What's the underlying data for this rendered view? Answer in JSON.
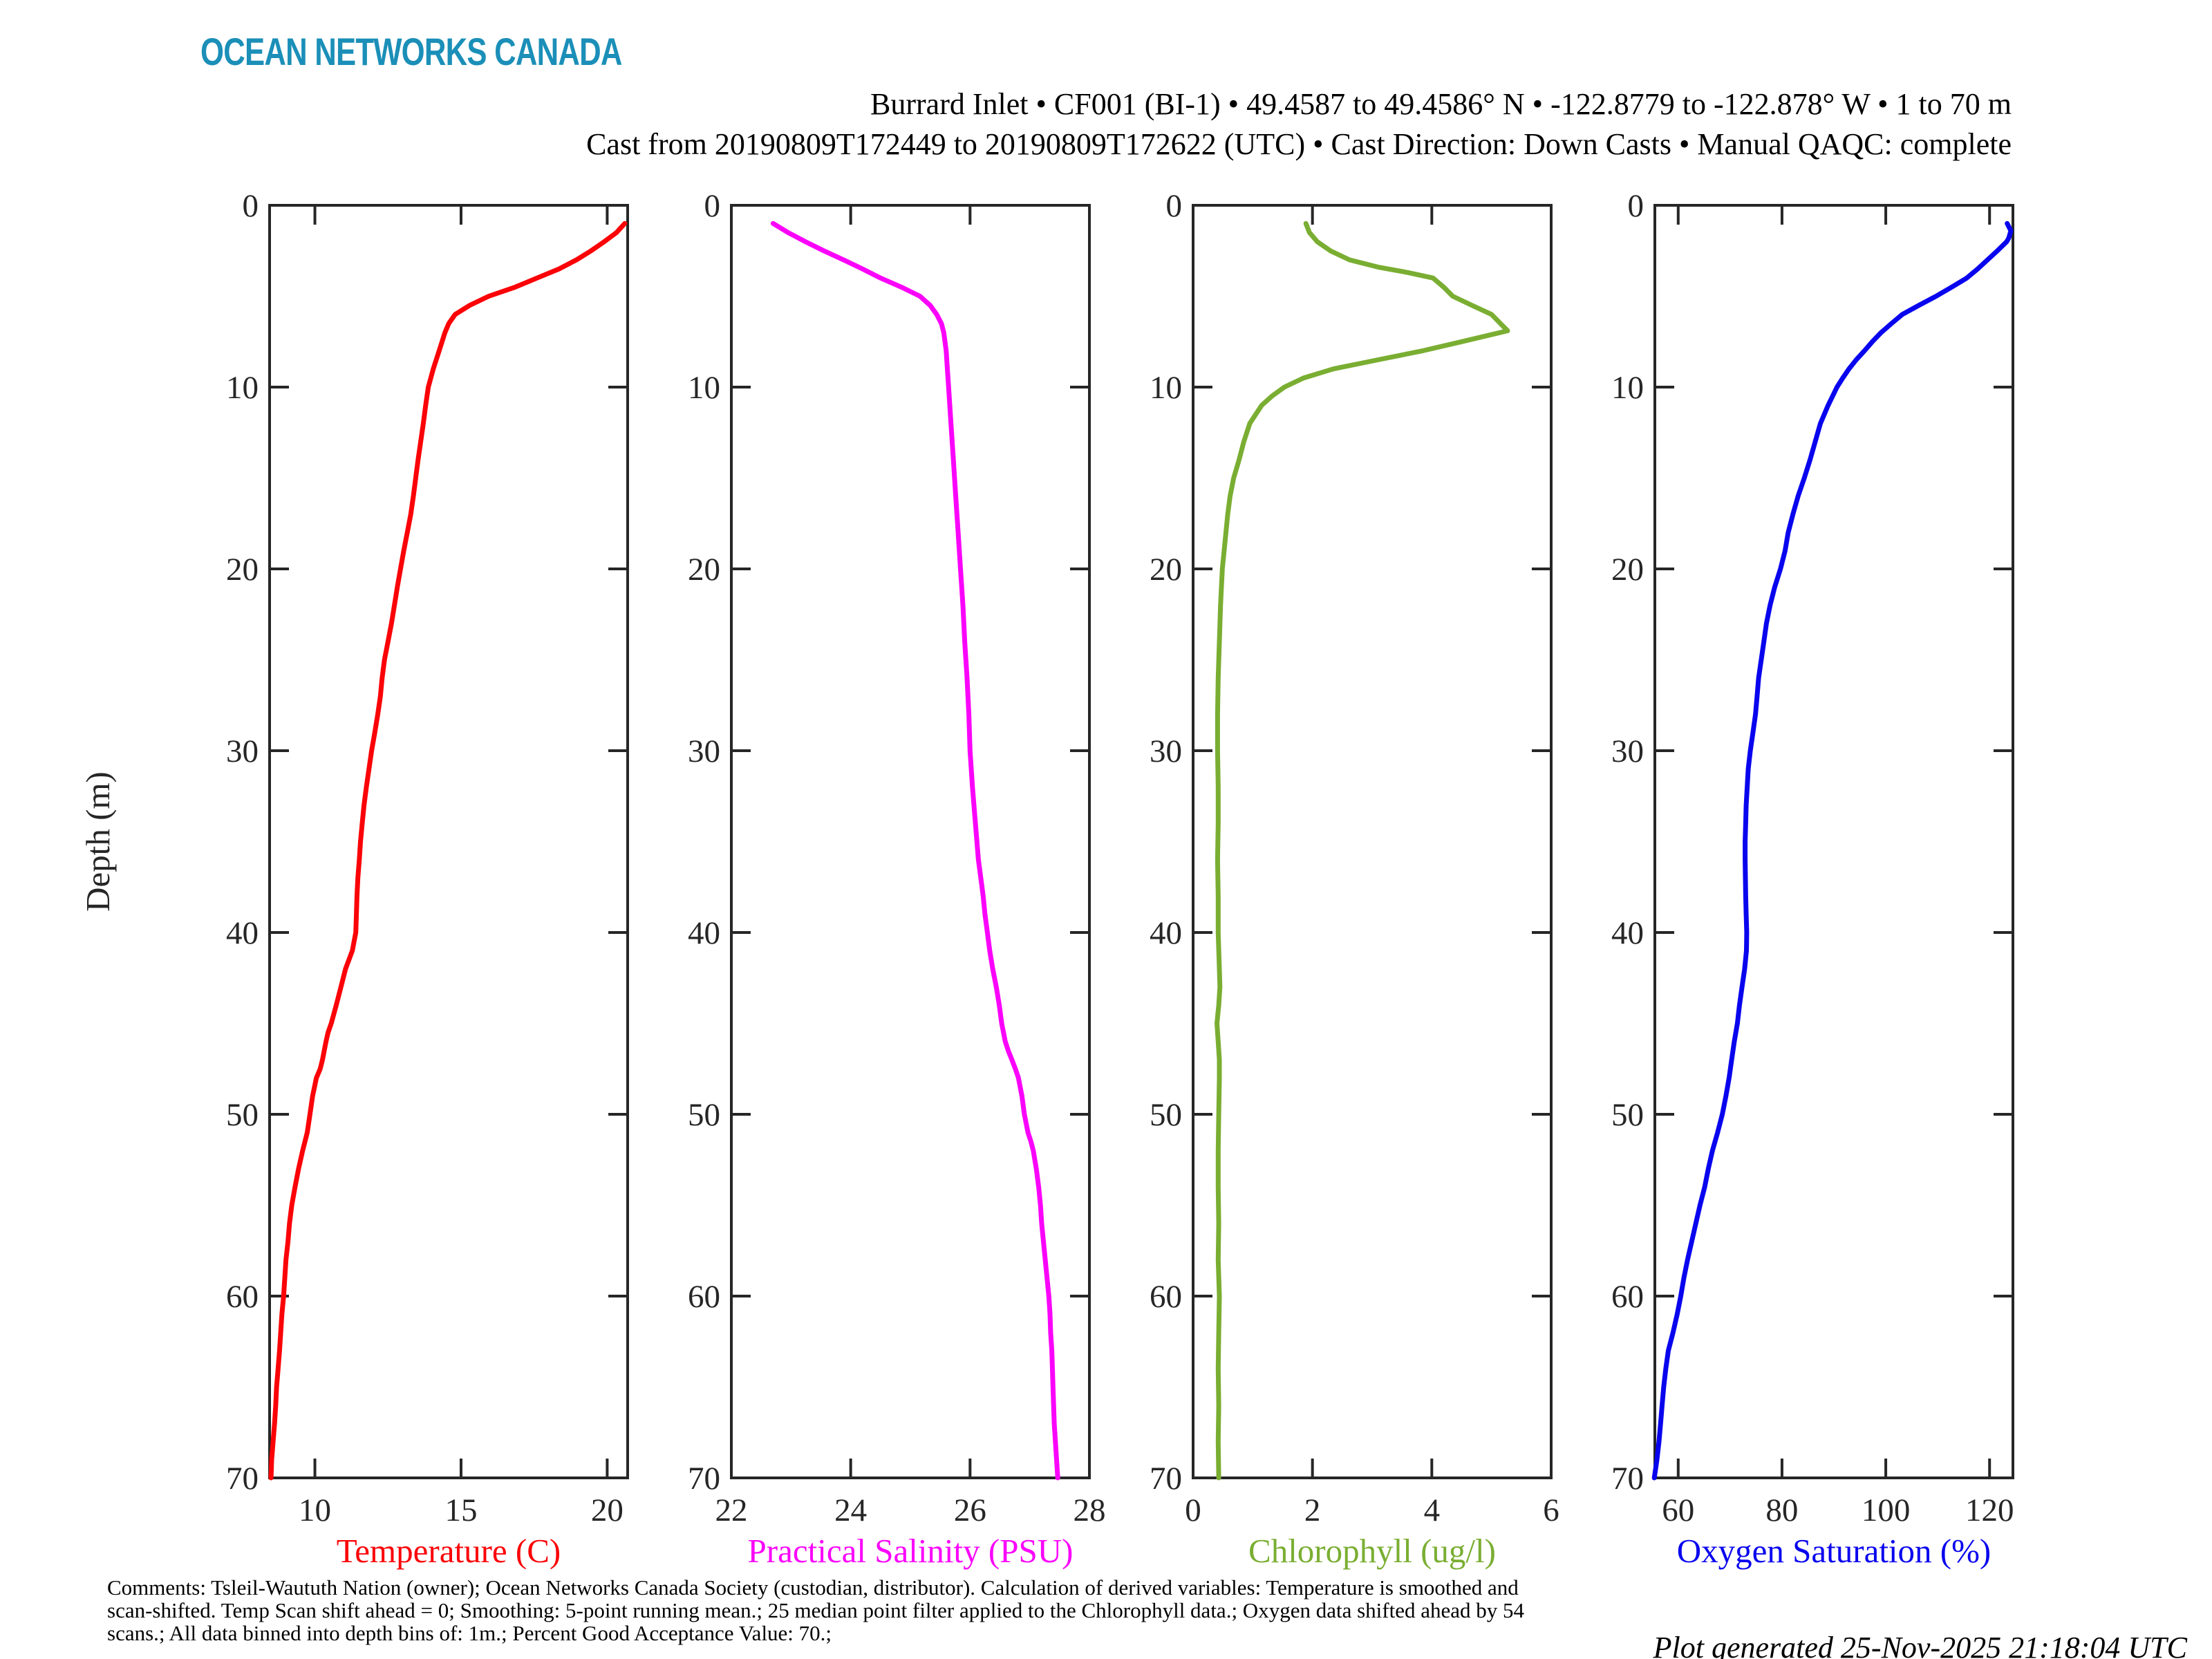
{
  "logo_text": "OCEAN NETWORKS CANADA",
  "header": {
    "line1": "Burrard Inlet • CF001 (BI-1) • 49.4587 to 49.4586° N • -122.8779 to -122.878° W • 1 to 70 m",
    "line2": "Cast from 20190809T172449 to 20190809T172622 (UTC) • Cast Direction: Down Casts • Manual QAQC: complete"
  },
  "footer": {
    "comments_line1": "Comments: Tsleil-Waututh Nation (owner); Ocean Networks Canada Society (custodian, distributor). Calculation of derived variables: Temperature is smoothed and",
    "comments_line2": "scan-shifted. Temp Scan shift ahead = 0; Smoothing: 5-point running mean.; 25 median point filter applied to the Chlorophyll data.; Oxygen data shifted ahead by 54",
    "comments_line3": "scans.; All data binned into depth bins of: 1m.; Percent Good Acceptance Value: 70.;",
    "generated": "Plot generated 25-Nov-2025 21:18:04 UTC"
  },
  "colors": {
    "logo": "#1b8fb8",
    "axis": "#262626",
    "temperature": "#fb0207",
    "salinity": "#fb02fb",
    "chlorophyll": "#7aae32",
    "oxygen": "#0904ee"
  },
  "depth_axis": {
    "label": "Depth (m)",
    "range": [
      0,
      70
    ],
    "ticks": [
      0,
      10,
      20,
      30,
      40,
      50,
      60,
      70
    ]
  },
  "chart_data": [
    {
      "type": "line",
      "label": "Temperature (C)",
      "color_key": "temperature",
      "xlim": [
        8.45,
        20.7
      ],
      "xticks": [
        10,
        15,
        20
      ],
      "ylabel": "Depth (m)",
      "ylim": [
        0,
        70
      ],
      "points": [
        [
          1,
          20.6
        ],
        [
          1.5,
          20.32
        ],
        [
          2,
          19.9
        ],
        [
          2.5,
          19.45
        ],
        [
          3,
          18.95
        ],
        [
          3.5,
          18.35
        ],
        [
          4,
          17.6
        ],
        [
          4.5,
          16.85
        ],
        [
          5,
          15.95
        ],
        [
          5.5,
          15.3
        ],
        [
          6,
          14.8
        ],
        [
          6.5,
          14.58
        ],
        [
          7,
          14.45
        ],
        [
          7.5,
          14.35
        ],
        [
          8,
          14.25
        ],
        [
          9,
          14.05
        ],
        [
          10,
          13.88
        ],
        [
          11,
          13.79
        ],
        [
          12,
          13.71
        ],
        [
          13,
          13.62
        ],
        [
          14,
          13.53
        ],
        [
          15,
          13.45
        ],
        [
          16,
          13.37
        ],
        [
          17,
          13.28
        ],
        [
          18,
          13.16
        ],
        [
          19,
          13.04
        ],
        [
          20,
          12.93
        ],
        [
          21,
          12.82
        ],
        [
          22,
          12.72
        ],
        [
          23,
          12.62
        ],
        [
          24,
          12.5
        ],
        [
          25,
          12.38
        ],
        [
          26,
          12.3
        ],
        [
          27,
          12.24
        ],
        [
          28,
          12.15
        ],
        [
          29,
          12.05
        ],
        [
          30,
          11.94
        ],
        [
          31,
          11.85
        ],
        [
          32,
          11.76
        ],
        [
          33,
          11.68
        ],
        [
          34,
          11.62
        ],
        [
          35,
          11.56
        ],
        [
          36,
          11.52
        ],
        [
          37,
          11.47
        ],
        [
          38,
          11.44
        ],
        [
          39,
          11.42
        ],
        [
          40,
          11.4
        ],
        [
          41,
          11.28
        ],
        [
          42,
          11.05
        ],
        [
          43,
          10.89
        ],
        [
          44,
          10.73
        ],
        [
          45,
          10.56
        ],
        [
          45.5,
          10.45
        ],
        [
          46,
          10.38
        ],
        [
          47,
          10.26
        ],
        [
          47.5,
          10.18
        ],
        [
          48,
          10.05
        ],
        [
          49,
          9.92
        ],
        [
          50,
          9.83
        ],
        [
          51,
          9.74
        ],
        [
          52,
          9.58
        ],
        [
          53,
          9.44
        ],
        [
          54,
          9.32
        ],
        [
          55,
          9.21
        ],
        [
          56,
          9.13
        ],
        [
          57,
          9.08
        ],
        [
          58,
          9.01
        ],
        [
          59,
          8.97
        ],
        [
          60,
          8.93
        ],
        [
          61,
          8.87
        ],
        [
          62,
          8.83
        ],
        [
          63,
          8.79
        ],
        [
          64,
          8.74
        ],
        [
          65,
          8.69
        ],
        [
          66,
          8.66
        ],
        [
          67,
          8.62
        ],
        [
          68,
          8.57
        ],
        [
          69,
          8.52
        ],
        [
          70,
          8.5
        ]
      ]
    },
    {
      "type": "line",
      "label": "Practical Salinity (PSU)",
      "color_key": "salinity",
      "xlim": [
        22,
        28
      ],
      "xticks": [
        22,
        24,
        26,
        28
      ],
      "ylabel": "Depth (m)",
      "ylim": [
        0,
        70
      ],
      "points": [
        [
          1,
          22.7
        ],
        [
          1.5,
          22.95
        ],
        [
          2,
          23.24
        ],
        [
          2.5,
          23.55
        ],
        [
          3,
          23.88
        ],
        [
          3.5,
          24.2
        ],
        [
          4,
          24.5
        ],
        [
          4.5,
          24.85
        ],
        [
          5,
          25.16
        ],
        [
          5.5,
          25.33
        ],
        [
          6,
          25.44
        ],
        [
          6.5,
          25.52
        ],
        [
          7,
          25.56
        ],
        [
          8,
          25.6
        ],
        [
          9,
          25.62
        ],
        [
          10,
          25.64
        ],
        [
          12,
          25.68
        ],
        [
          14,
          25.72
        ],
        [
          16,
          25.76
        ],
        [
          18,
          25.8
        ],
        [
          20,
          25.84
        ],
        [
          22,
          25.88
        ],
        [
          24,
          25.91
        ],
        [
          26,
          25.95
        ],
        [
          28,
          25.98
        ],
        [
          30,
          26.0
        ],
        [
          32,
          26.04
        ],
        [
          34,
          26.09
        ],
        [
          36,
          26.14
        ],
        [
          37,
          26.18
        ],
        [
          38,
          26.22
        ],
        [
          39,
          26.25
        ],
        [
          40,
          26.29
        ],
        [
          41,
          26.33
        ],
        [
          42,
          26.38
        ],
        [
          43,
          26.44
        ],
        [
          44,
          26.49
        ],
        [
          45,
          26.53
        ],
        [
          46,
          26.59
        ],
        [
          46.5,
          26.64
        ],
        [
          47,
          26.7
        ],
        [
          47.5,
          26.76
        ],
        [
          48,
          26.81
        ],
        [
          49,
          26.87
        ],
        [
          50,
          26.91
        ],
        [
          51,
          26.97
        ],
        [
          51.5,
          27.02
        ],
        [
          52,
          27.06
        ],
        [
          53,
          27.11
        ],
        [
          54,
          27.15
        ],
        [
          55,
          27.18
        ],
        [
          56,
          27.2
        ],
        [
          57,
          27.23
        ],
        [
          58,
          27.26
        ],
        [
          59,
          27.29
        ],
        [
          60,
          27.32
        ],
        [
          61,
          27.34
        ],
        [
          62,
          27.35
        ],
        [
          63,
          27.37
        ],
        [
          64,
          27.38
        ],
        [
          65,
          27.39
        ],
        [
          66,
          27.4
        ],
        [
          67,
          27.41
        ],
        [
          68,
          27.43
        ],
        [
          69,
          27.45
        ],
        [
          70,
          27.47
        ]
      ]
    },
    {
      "type": "line",
      "label": "Chlorophyll (ug/l)",
      "color_key": "chlorophyll",
      "xlim": [
        0,
        6
      ],
      "xticks": [
        0,
        2,
        4,
        6
      ],
      "ylabel": "Depth (m)",
      "ylim": [
        0,
        70
      ],
      "points": [
        [
          1,
          1.89
        ],
        [
          1.5,
          1.95
        ],
        [
          2,
          2.08
        ],
        [
          2.5,
          2.3
        ],
        [
          3,
          2.62
        ],
        [
          3.4,
          3.1
        ],
        [
          3.7,
          3.6
        ],
        [
          4,
          4.02
        ],
        [
          4.5,
          4.2
        ],
        [
          5,
          4.35
        ],
        [
          5.5,
          4.67
        ],
        [
          6,
          5.0
        ],
        [
          6.5,
          5.15
        ],
        [
          6.9,
          5.27
        ],
        [
          7.5,
          4.5
        ],
        [
          8,
          3.85
        ],
        [
          8.5,
          3.1
        ],
        [
          9,
          2.35
        ],
        [
          9.5,
          1.85
        ],
        [
          10,
          1.53
        ],
        [
          10.5,
          1.32
        ],
        [
          11,
          1.15
        ],
        [
          12,
          0.95
        ],
        [
          13,
          0.85
        ],
        [
          14,
          0.77
        ],
        [
          15,
          0.68
        ],
        [
          16,
          0.62
        ],
        [
          17,
          0.58
        ],
        [
          18,
          0.55
        ],
        [
          19,
          0.52
        ],
        [
          20,
          0.49
        ],
        [
          22,
          0.46
        ],
        [
          24,
          0.44
        ],
        [
          26,
          0.42
        ],
        [
          28,
          0.41
        ],
        [
          30,
          0.41
        ],
        [
          32,
          0.42
        ],
        [
          34,
          0.42
        ],
        [
          36,
          0.41
        ],
        [
          38,
          0.42
        ],
        [
          40,
          0.42
        ],
        [
          42,
          0.44
        ],
        [
          43,
          0.45
        ],
        [
          44,
          0.43
        ],
        [
          45,
          0.4
        ],
        [
          46,
          0.42
        ],
        [
          47,
          0.44
        ],
        [
          48,
          0.44
        ],
        [
          50,
          0.43
        ],
        [
          52,
          0.42
        ],
        [
          54,
          0.42
        ],
        [
          56,
          0.43
        ],
        [
          58,
          0.42
        ],
        [
          60,
          0.44
        ],
        [
          62,
          0.43
        ],
        [
          64,
          0.42
        ],
        [
          66,
          0.43
        ],
        [
          68,
          0.42
        ],
        [
          70,
          0.43
        ]
      ]
    },
    {
      "type": "line",
      "label": "Oxygen Saturation (%)",
      "color_key": "oxygen",
      "xlim": [
        55.5,
        124.5
      ],
      "xticks": [
        60,
        80,
        100,
        120
      ],
      "ylabel": "Depth (m)",
      "ylim": [
        0,
        70
      ],
      "points": [
        [
          1,
          123.4
        ],
        [
          1.4,
          124.1
        ],
        [
          1.8,
          123.7
        ],
        [
          2,
          123.3
        ],
        [
          2.5,
          121.5
        ],
        [
          3,
          119.6
        ],
        [
          3.5,
          117.7
        ],
        [
          4,
          115.6
        ],
        [
          4.5,
          112.7
        ],
        [
          5,
          109.7
        ],
        [
          5.5,
          106.4
        ],
        [
          6,
          103.2
        ],
        [
          6.5,
          101.1
        ],
        [
          7,
          99.1
        ],
        [
          7.5,
          97.4
        ],
        [
          8,
          95.9
        ],
        [
          8.5,
          94.3
        ],
        [
          9,
          92.9
        ],
        [
          9.5,
          91.7
        ],
        [
          10,
          90.6
        ],
        [
          11,
          88.9
        ],
        [
          12,
          87.4
        ],
        [
          13,
          86.4
        ],
        [
          14,
          85.4
        ],
        [
          15,
          84.3
        ],
        [
          16,
          83.1
        ],
        [
          17,
          82.1
        ],
        [
          18,
          81.2
        ],
        [
          19,
          80.6
        ],
        [
          20,
          79.7
        ],
        [
          21,
          78.6
        ],
        [
          22,
          77.7
        ],
        [
          23,
          77.0
        ],
        [
          24,
          76.5
        ],
        [
          25,
          76.0
        ],
        [
          26,
          75.5
        ],
        [
          27,
          75.2
        ],
        [
          28,
          74.9
        ],
        [
          29,
          74.4
        ],
        [
          30,
          73.9
        ],
        [
          31,
          73.5
        ],
        [
          32,
          73.3
        ],
        [
          33,
          73.1
        ],
        [
          34,
          73.0
        ],
        [
          35,
          72.9
        ],
        [
          36,
          72.9
        ],
        [
          37,
          72.95
        ],
        [
          38,
          73.0
        ],
        [
          39,
          73.1
        ],
        [
          40,
          73.2
        ],
        [
          41,
          73.15
        ],
        [
          42,
          72.8
        ],
        [
          43,
          72.3
        ],
        [
          44,
          71.8
        ],
        [
          45,
          71.4
        ],
        [
          46,
          70.8
        ],
        [
          47,
          70.3
        ],
        [
          48,
          69.8
        ],
        [
          49,
          69.2
        ],
        [
          50,
          68.5
        ],
        [
          51,
          67.6
        ],
        [
          52,
          66.6
        ],
        [
          53,
          65.8
        ],
        [
          54,
          65.1
        ],
        [
          55,
          64.2
        ],
        [
          56,
          63.4
        ],
        [
          57,
          62.6
        ],
        [
          58,
          61.8
        ],
        [
          59,
          61.1
        ],
        [
          60,
          60.5
        ],
        [
          61,
          59.8
        ],
        [
          62,
          59.0
        ],
        [
          63,
          58.1
        ],
        [
          64,
          57.6
        ],
        [
          65,
          57.2
        ],
        [
          66,
          56.9
        ],
        [
          67,
          56.6
        ],
        [
          68,
          56.3
        ],
        [
          69,
          55.9
        ],
        [
          70,
          55.4
        ]
      ]
    }
  ]
}
